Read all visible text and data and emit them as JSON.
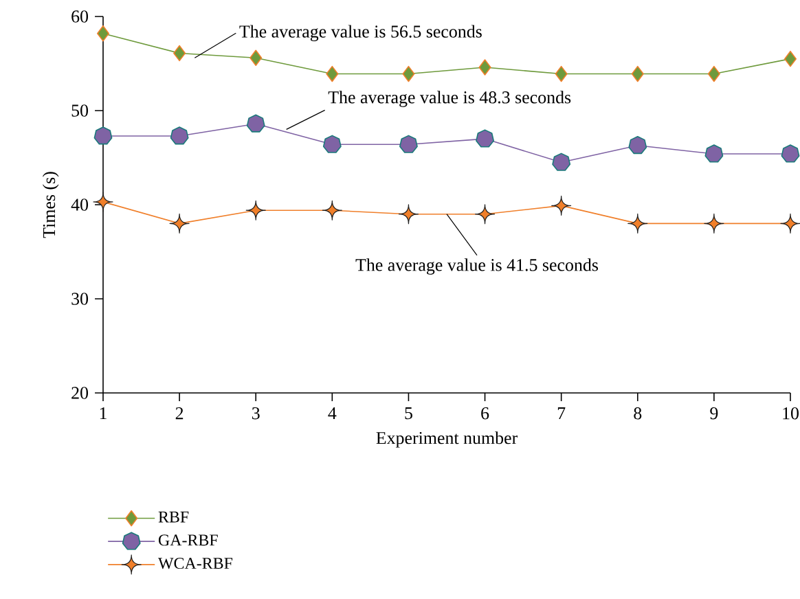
{
  "chart_data": {
    "type": "line",
    "xlabel": "Experiment number",
    "ylabel": "Times (s)",
    "x": [
      1,
      2,
      3,
      4,
      5,
      6,
      7,
      8,
      9,
      10
    ],
    "series": [
      {
        "name": "RBF",
        "color": "#6e9a3c",
        "marker": "diamond",
        "values": [
          58.2,
          56.1,
          55.6,
          53.9,
          53.9,
          54.6,
          53.9,
          53.9,
          53.9,
          55.5
        ]
      },
      {
        "name": "GA-RBF",
        "color": "#7f63a4",
        "marker": "circle",
        "values": [
          47.3,
          47.3,
          48.6,
          46.4,
          46.4,
          47.0,
          44.5,
          46.3,
          45.4,
          45.4
        ]
      },
      {
        "name": "WCA-RBF",
        "color": "#f07f2a",
        "marker": "star",
        "values": [
          40.3,
          38.0,
          39.4,
          39.4,
          39.0,
          39.0,
          39.9,
          38.0,
          38.0,
          38.0
        ]
      }
    ],
    "annotations": [
      {
        "text": "The average value is 56.5 seconds",
        "x": 2.2,
        "y": 55.6
      },
      {
        "text": "The average value is 48.3 seconds",
        "x": 3.4,
        "y": 48.0
      },
      {
        "text": "The average value is 41.5 seconds",
        "x": 5.5,
        "y": 39.0
      }
    ],
    "xlim": [
      1,
      10
    ],
    "ylim": [
      20,
      60
    ],
    "xticks": [
      1,
      2,
      3,
      4,
      5,
      6,
      7,
      8,
      9,
      10
    ],
    "yticks": [
      20,
      30,
      40,
      50,
      60
    ],
    "grid": false,
    "legend": "bottom",
    "line_style": "solid"
  }
}
